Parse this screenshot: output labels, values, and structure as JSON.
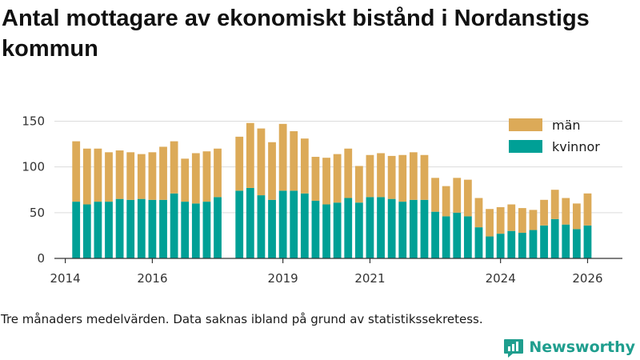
{
  "title": "Antal mottagare av ekonomiskt bistånd i Nordanstigs kommun",
  "note": "Tre månaders medelvärden. Data saknas ibland på grund av statistikssekretess.",
  "brand": {
    "name": "Newsworthy",
    "logo_icon": "bar-chart-speech-bubble-icon",
    "color": "#1f9e8e"
  },
  "chart_data": {
    "type": "bar",
    "stacked": true,
    "x_unit": "year (quarterly, decimal)",
    "xlim": [
      2013.75,
      2026.8
    ],
    "ylim": [
      0,
      160
    ],
    "x_ticks": [
      2014,
      2016,
      2019,
      2021,
      2024,
      2026
    ],
    "y_ticks": [
      0,
      50,
      100,
      150
    ],
    "grid": true,
    "legend_position": "top-right",
    "x": [
      2014.25,
      2014.5,
      2014.75,
      2015.0,
      2015.25,
      2015.5,
      2015.75,
      2016.0,
      2016.25,
      2016.5,
      2016.75,
      2017.0,
      2017.25,
      2017.5,
      2018.0,
      2018.25,
      2018.5,
      2018.75,
      2019.0,
      2019.25,
      2019.5,
      2019.75,
      2020.0,
      2020.25,
      2020.5,
      2020.75,
      2021.0,
      2021.25,
      2021.5,
      2021.75,
      2022.0,
      2022.25,
      2022.5,
      2022.75,
      2023.0,
      2023.25,
      2023.5,
      2023.75,
      2024.0,
      2024.25,
      2024.5,
      2024.75,
      2025.0,
      2025.25,
      2025.5,
      2025.75,
      2026.0
    ],
    "series": [
      {
        "name": "kvinnor",
        "color": "#00a096",
        "values": [
          62,
          59,
          62,
          62,
          65,
          64,
          65,
          64,
          64,
          71,
          62,
          60,
          62,
          67,
          74,
          77,
          69,
          64,
          74,
          74,
          71,
          63,
          59,
          61,
          66,
          61,
          67,
          67,
          65,
          62,
          64,
          64,
          51,
          46,
          50,
          46,
          34,
          24,
          27,
          30,
          28,
          31,
          36,
          43,
          37,
          32,
          36
        ]
      },
      {
        "name": "män",
        "color": "#dcaa58",
        "values": [
          66,
          61,
          58,
          54,
          53,
          52,
          49,
          52,
          58,
          57,
          47,
          55,
          55,
          53,
          59,
          71,
          73,
          63,
          73,
          65,
          60,
          48,
          51,
          53,
          54,
          40,
          46,
          48,
          47,
          51,
          52,
          49,
          37,
          33,
          38,
          40,
          32,
          30,
          29,
          29,
          27,
          22,
          28,
          32,
          29,
          28,
          35
        ]
      }
    ],
    "legend": [
      {
        "label": "män",
        "color": "#dcaa58"
      },
      {
        "label": "kvinnor",
        "color": "#00a096"
      }
    ]
  }
}
